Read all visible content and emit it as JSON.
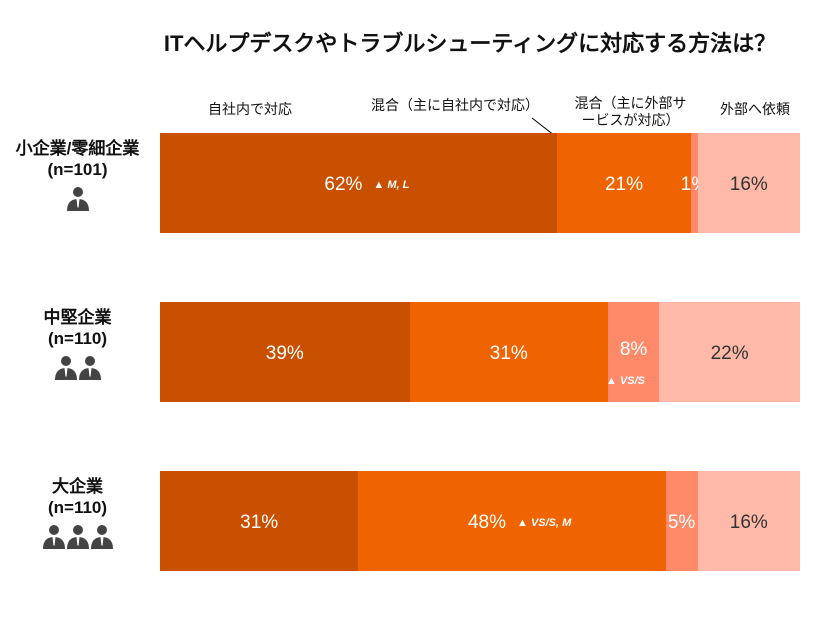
{
  "chart_data": {
    "type": "bar",
    "orientation": "horizontal",
    "stacked": true,
    "title": "ITヘルプデスクやトラブルシューティングに対応する方法は？",
    "series": [
      {
        "name": "自社内で対応",
        "color": "#C85000",
        "values": [
          62,
          39,
          31
        ]
      },
      {
        "name": "混合（主に自社内で対応）",
        "color": "#F06400",
        "values": [
          21,
          31,
          48
        ]
      },
      {
        "name": "混合（主に外部サービスが対応）",
        "color": "#FF8A6A",
        "values": [
          1,
          8,
          5
        ]
      },
      {
        "name": "外部へ依頼",
        "color": "#FFB9A8",
        "values": [
          16,
          22,
          16
        ]
      }
    ],
    "categories": [
      {
        "name": "小企業/零細企業",
        "n": "(n=101)",
        "people": 1
      },
      {
        "name": "中堅企業",
        "n": "(n=110)",
        "people": 2
      },
      {
        "name": "大企業",
        "n": "(n=110)",
        "people": 3
      }
    ],
    "value_labels": [
      [
        "62%",
        "21%",
        "1%",
        "16%"
      ],
      [
        "39%",
        "31%",
        "8%",
        "22%"
      ],
      [
        "31%",
        "48%",
        "5%",
        "16%"
      ]
    ],
    "annotations": [
      {
        "row": 0,
        "series": 0,
        "text": "▲ M, L"
      },
      {
        "row": 1,
        "series": 2,
        "text": "▲ VS/S"
      },
      {
        "row": 2,
        "series": 1,
        "text": "▲ VS/S, M"
      }
    ],
    "legend_placement": "top"
  }
}
